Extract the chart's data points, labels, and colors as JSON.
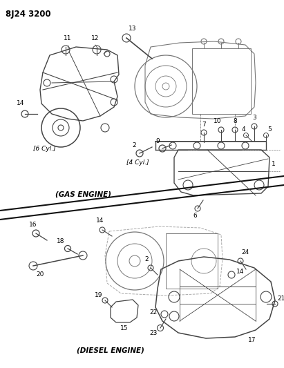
{
  "title": "8J24 3200",
  "bg_color": "#ffffff",
  "line_color": "#000000",
  "text_color": "#000000",
  "figsize": [
    4.11,
    5.33
  ],
  "dpi": 100,
  "labels": {
    "gas_engine": "(GAS ENGINE)",
    "diesel_engine": "(DIESEL ENGINE)",
    "six_cyl": "[6 Cyl.]",
    "four_cyl": "[4 Cyl.]"
  }
}
